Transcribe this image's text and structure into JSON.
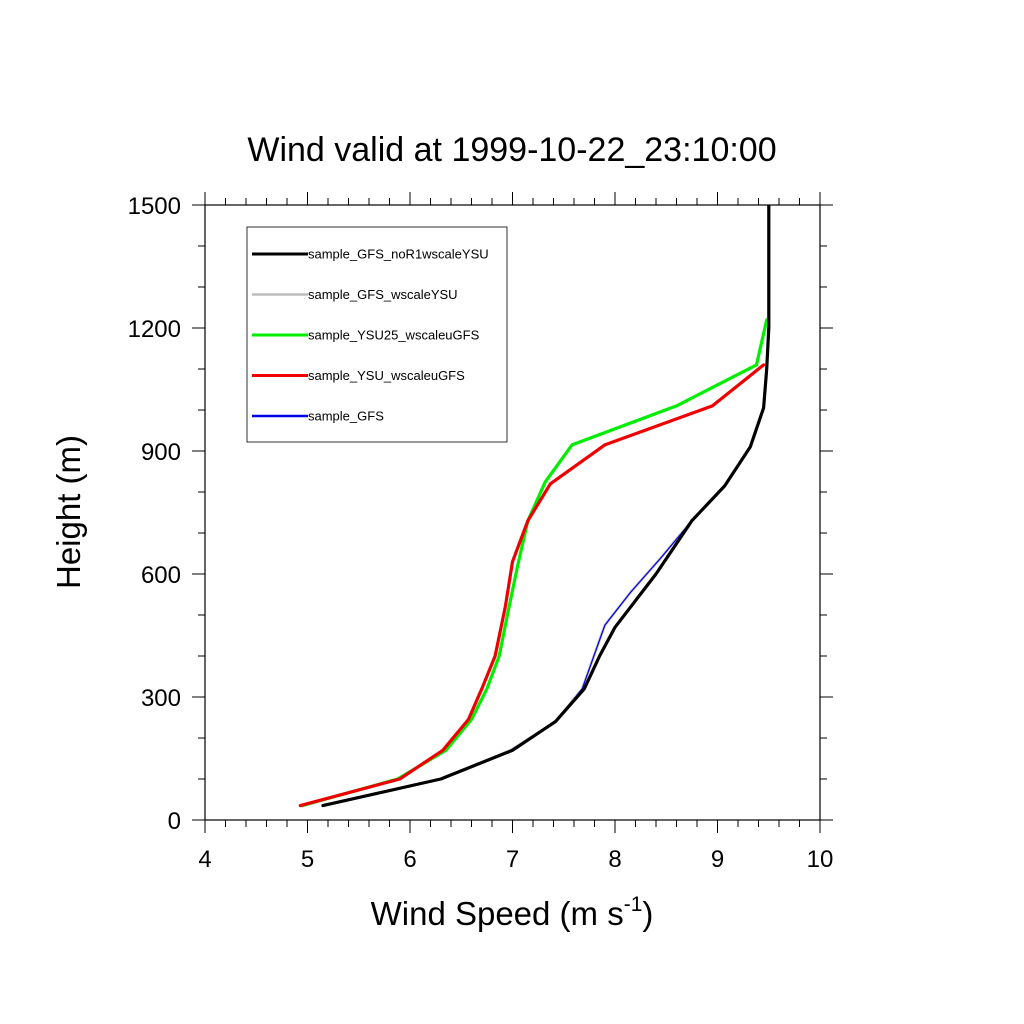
{
  "chart_data": {
    "type": "line",
    "title": "Wind valid at 1999-10-22_23:10:00",
    "xlabel": "Wind Speed (m s",
    "xlabel_sup": "-1",
    "xlabel_end": ")",
    "ylabel": "Height (m)",
    "xlim": [
      4,
      10
    ],
    "ylim": [
      0,
      1500
    ],
    "xticks": [
      4,
      5,
      6,
      7,
      8,
      9,
      10
    ],
    "yticks": [
      0,
      300,
      600,
      900,
      1200,
      1500
    ],
    "x_minor_step": 0.2,
    "y_minor_step": 100,
    "grid": false,
    "legend_position": "top-left",
    "series": [
      {
        "name": "sample_GFS_noR1wscaleYSU",
        "color": "#000000",
        "width": 3.2,
        "x": [
          5.15,
          6.3,
          7.0,
          7.42,
          7.7,
          7.85,
          8.0,
          8.4,
          8.75,
          9.07,
          9.32,
          9.45,
          9.48,
          9.5,
          9.5
        ],
        "y": [
          35,
          100,
          170,
          240,
          320,
          400,
          470,
          600,
          730,
          815,
          910,
          1005,
          1100,
          1200,
          1500
        ]
      },
      {
        "name": "sample_GFS_wscaleYSU",
        "color": "#bdbdbd",
        "width": 2.6,
        "x": [
          5.15,
          6.3,
          6.98,
          7.42,
          7.68,
          7.9,
          8.15,
          8.45,
          8.75,
          9.07,
          9.32,
          9.45,
          9.48,
          9.5,
          9.5
        ],
        "y": [
          35,
          100,
          170,
          240,
          320,
          475,
          555,
          640,
          730,
          815,
          910,
          1005,
          1100,
          1200,
          1500
        ]
      },
      {
        "name": "sample_YSU25_wscaleuGFS",
        "color": "#00ee00",
        "width": 3.2,
        "x": [
          4.95,
          5.88,
          6.35,
          6.6,
          6.75,
          6.87,
          6.95,
          7.05,
          7.15,
          7.32,
          7.58,
          8.6,
          9.38,
          9.48
        ],
        "y": [
          35,
          100,
          170,
          245,
          320,
          400,
          500,
          620,
          730,
          825,
          915,
          1010,
          1110,
          1220
        ]
      },
      {
        "name": "sample_YSU_wscaleuGFS",
        "color": "#ee0000",
        "width": 3.2,
        "x": [
          4.93,
          5.9,
          6.32,
          6.57,
          6.7,
          6.83,
          6.93,
          7.0,
          7.15,
          7.37,
          7.9,
          8.95,
          9.45
        ],
        "y": [
          35,
          100,
          170,
          245,
          320,
          400,
          520,
          630,
          730,
          820,
          915,
          1010,
          1110
        ]
      },
      {
        "name": "sample_GFS",
        "color": "#0000ee",
        "width": 1.2,
        "x": [
          5.15,
          6.3,
          6.98,
          7.42,
          7.68,
          7.9,
          8.15,
          8.45,
          8.75,
          9.07,
          9.32,
          9.45,
          9.48,
          9.5,
          9.5
        ],
        "y": [
          35,
          100,
          170,
          240,
          320,
          475,
          555,
          640,
          730,
          815,
          910,
          1005,
          1100,
          1200,
          1500
        ]
      }
    ]
  }
}
